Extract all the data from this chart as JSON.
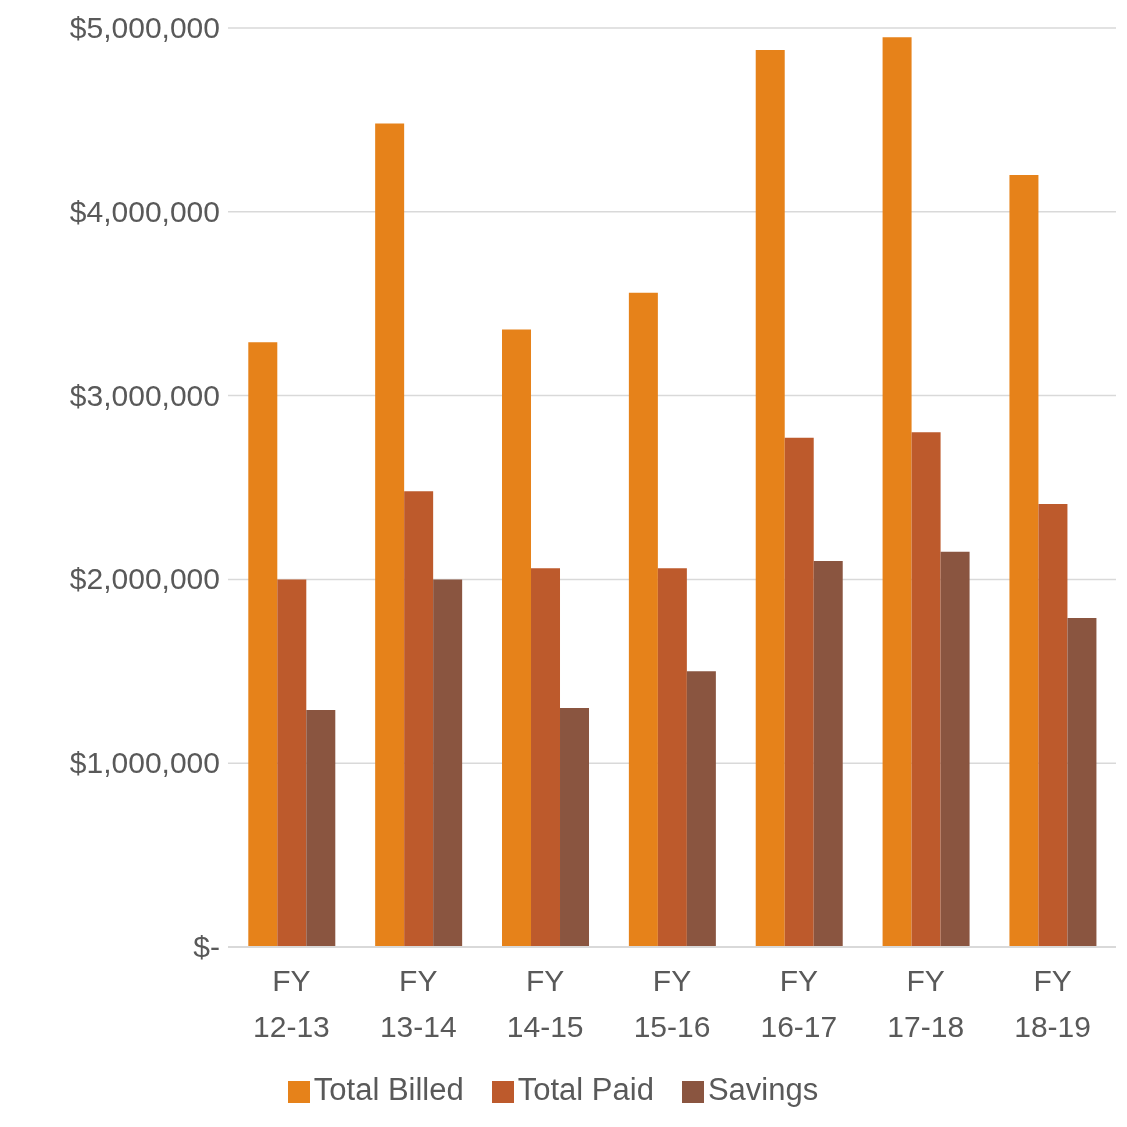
{
  "chart_data": {
    "type": "bar",
    "categories": [
      "FY 12-13",
      "FY 13-14",
      "FY 14-15",
      "FY 15-16",
      "FY 16-17",
      "FY 17-18",
      "FY 18-19"
    ],
    "series": [
      {
        "name": "Total Billed",
        "color": "#e6821a",
        "values": [
          3290000,
          4480000,
          3360000,
          3560000,
          4880000,
          4950000,
          4200000
        ]
      },
      {
        "name": "Total Paid",
        "color": "#bd5a2c",
        "values": [
          2000000,
          2480000,
          2060000,
          2060000,
          2770000,
          2800000,
          2410000
        ]
      },
      {
        "name": "Savings",
        "color": "#8a5540",
        "values": [
          1290000,
          2000000,
          1300000,
          1500000,
          2100000,
          2150000,
          1790000
        ]
      }
    ],
    "ylim": [
      0,
      5000000
    ],
    "yticks": [
      {
        "value": 0,
        "label": "$-"
      },
      {
        "value": 1000000,
        "label": "$1,000,000"
      },
      {
        "value": 2000000,
        "label": "$2,000,000"
      },
      {
        "value": 3000000,
        "label": "$3,000,000"
      },
      {
        "value": 4000000,
        "label": "$4,000,000"
      },
      {
        "value": 5000000,
        "label": "$5,000,000"
      }
    ],
    "grid": "y",
    "legend": "bottom"
  }
}
